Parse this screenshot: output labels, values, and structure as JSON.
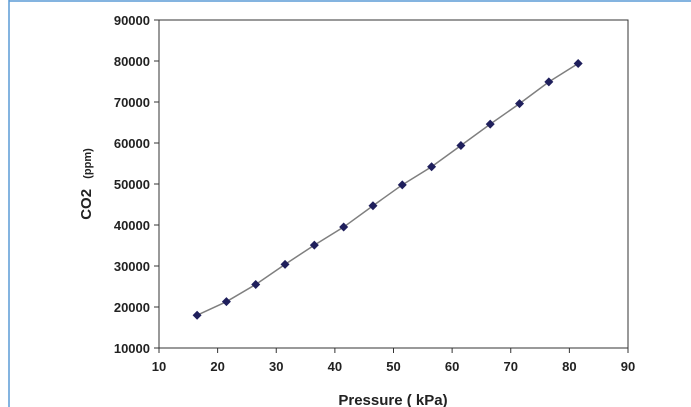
{
  "colors": {
    "frame": "#5b9bd5",
    "axis": "#333333",
    "line": "#7f7f7f",
    "marker": "#1f1f5c"
  },
  "chart_data": {
    "type": "line",
    "title": "",
    "xlabel": "Pressure ( kPa)",
    "ylabel": "CO2",
    "ylabel_unit": "(ppm)",
    "xlim": [
      10,
      90
    ],
    "ylim": [
      10000,
      90000
    ],
    "x_ticks": [
      "10",
      "20",
      "30",
      "40",
      "50",
      "60",
      "70",
      "80",
      "90"
    ],
    "y_ticks": [
      "10000",
      "20000",
      "30000",
      "40000",
      "50000",
      "60000",
      "70000",
      "80000",
      "90000"
    ],
    "grid": false,
    "legend": "none",
    "marker": "diamond",
    "series": [
      {
        "x": [
          16.5,
          21.5,
          26.5,
          31.5,
          36.5,
          41.5,
          46.5,
          51.5,
          56.5,
          61.5,
          66.5,
          71.5,
          76.5,
          81.5
        ],
        "y": [
          18000,
          21300,
          25500,
          30400,
          35100,
          39500,
          44700,
          49800,
          54200,
          59400,
          64600,
          69600,
          74900,
          79400
        ]
      }
    ]
  }
}
